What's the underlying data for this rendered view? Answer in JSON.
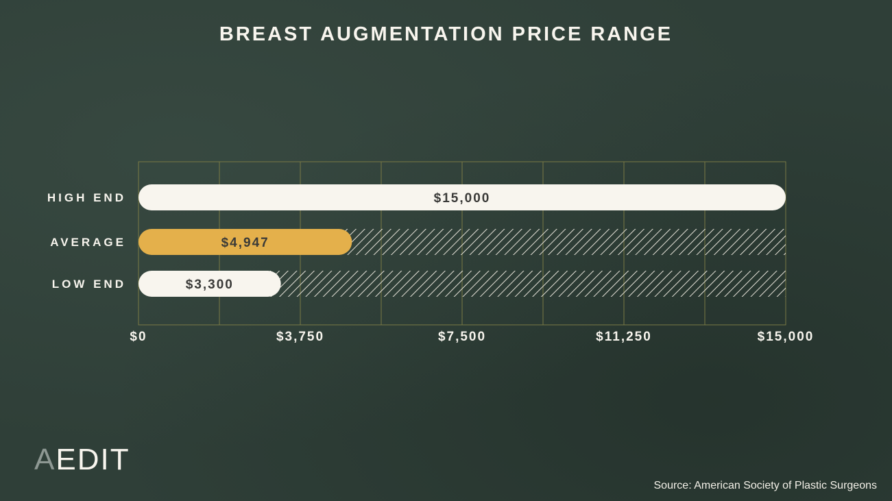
{
  "title": "BREAST AUGMENTATION PRICE RANGE",
  "brand": {
    "first": "A",
    "rest": "EDIT"
  },
  "source": "Source: American Society of Plastic Surgeons",
  "colors": {
    "background": "#2f3f38",
    "grid": "#7a7a45",
    "bar_light": "#f8f5ee",
    "bar_accent": "#e4b04b",
    "label_text": "#f8f5ee",
    "value_text": "#3a3a38"
  },
  "chart_data": {
    "type": "bar",
    "orientation": "horizontal",
    "title": "BREAST AUGMENTATION PRICE RANGE",
    "categories": [
      "HIGH END",
      "AVERAGE",
      "LOW END"
    ],
    "values": [
      15000,
      4947,
      3300
    ],
    "value_labels": [
      "$15,000",
      "$4,947",
      "$3,300"
    ],
    "highlight": "AVERAGE",
    "remainder_pattern": "hatched",
    "xlim": [
      0,
      15000
    ],
    "x_ticks": [
      0,
      3750,
      7500,
      11250,
      15000
    ],
    "x_tick_labels": [
      "$0",
      "$3,750",
      "$7,500",
      "$11,250",
      "$15,000"
    ],
    "grid": true
  }
}
